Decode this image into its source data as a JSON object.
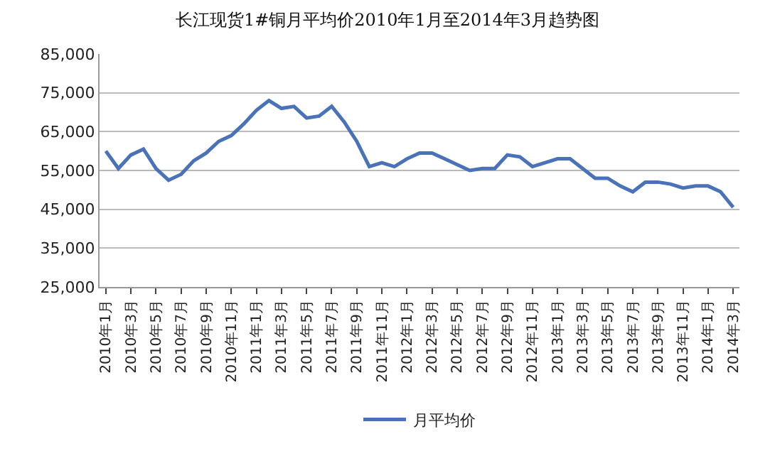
{
  "chart_data": {
    "type": "line",
    "title": "长江现货1#铜月平均价2010年1月至2014年3月趋势图",
    "categories": [
      "2010年1月",
      null,
      "2010年3月",
      null,
      "2010年5月",
      null,
      "2010年7月",
      null,
      "2010年9月",
      null,
      "2010年11月",
      null,
      "2011年1月",
      null,
      "2011年3月",
      null,
      "2011年5月",
      null,
      "2011年7月",
      null,
      "2011年9月",
      null,
      "2011年11月",
      null,
      "2012年1月",
      null,
      "2012年3月",
      null,
      "2012年5月",
      null,
      "2012年7月",
      null,
      "2012年9月",
      null,
      "2012年11月",
      null,
      "2013年1月",
      null,
      "2013年3月",
      null,
      "2013年5月",
      null,
      "2013年7月",
      null,
      "2013年9月",
      null,
      "2013年11月",
      null,
      "2014年1月",
      null,
      "2014年3月"
    ],
    "series": [
      {
        "name": "月平均价",
        "color": "#4a72b8",
        "values": [
          60000,
          55500,
          59000,
          60500,
          55500,
          52500,
          54000,
          57500,
          59500,
          62500,
          64000,
          67000,
          70500,
          73000,
          71000,
          71500,
          68500,
          69000,
          71500,
          67500,
          62500,
          56000,
          57000,
          56000,
          58000,
          59500,
          59500,
          58000,
          56500,
          55000,
          55500,
          55500,
          59000,
          58500,
          56000,
          57000,
          58000,
          58000,
          55500,
          53000,
          53000,
          51000,
          49500,
          52000,
          52000,
          51500,
          50500,
          51000,
          51000,
          49500,
          45500
        ]
      }
    ],
    "ylim": [
      25000,
      85000
    ],
    "yticks": [
      {
        "value": 25000,
        "label": "25,000"
      },
      {
        "value": 35000,
        "label": "35,000"
      },
      {
        "value": 45000,
        "label": "45,000"
      },
      {
        "value": 55000,
        "label": "55,000"
      },
      {
        "value": 65000,
        "label": "65,000"
      },
      {
        "value": 75000,
        "label": "75,000"
      },
      {
        "value": 85000,
        "label": "85,000"
      }
    ],
    "grid": "y",
    "legend": "bottom",
    "marker": "none",
    "line_style": "solid"
  }
}
